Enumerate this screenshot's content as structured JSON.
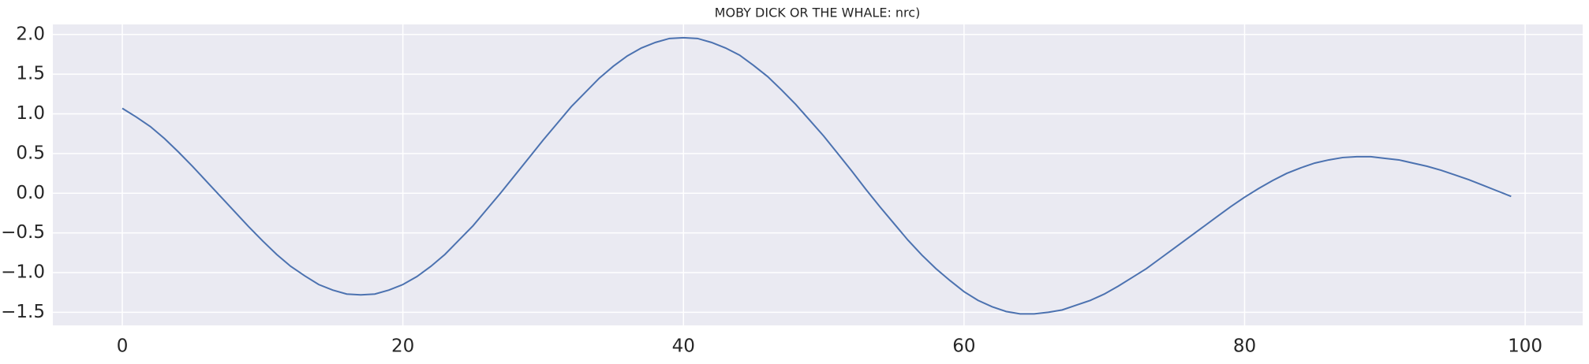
{
  "chart_data": {
    "type": "line",
    "title": "MOBY DICK OR THE WHALE: nrc)",
    "x": [
      0,
      1,
      2,
      3,
      4,
      5,
      6,
      7,
      8,
      9,
      10,
      11,
      12,
      13,
      14,
      15,
      16,
      17,
      18,
      19,
      20,
      21,
      22,
      23,
      24,
      25,
      26,
      27,
      28,
      29,
      30,
      31,
      32,
      33,
      34,
      35,
      36,
      37,
      38,
      39,
      40,
      41,
      42,
      43,
      44,
      45,
      46,
      47,
      48,
      49,
      50,
      51,
      52,
      53,
      54,
      55,
      56,
      57,
      58,
      59,
      60,
      61,
      62,
      63,
      64,
      65,
      66,
      67,
      68,
      69,
      70,
      71,
      72,
      73,
      74,
      75,
      76,
      77,
      78,
      79,
      80,
      81,
      82,
      83,
      84,
      85,
      86,
      87,
      88,
      89,
      90,
      91,
      92,
      93,
      94,
      95,
      96,
      97,
      98,
      99
    ],
    "series": [
      {
        "color": "#4c72b0",
        "values": [
          1.07,
          0.96,
          0.84,
          0.69,
          0.52,
          0.34,
          0.15,
          -0.04,
          -0.23,
          -0.42,
          -0.6,
          -0.77,
          -0.92,
          -1.04,
          -1.15,
          -1.22,
          -1.27,
          -1.28,
          -1.27,
          -1.22,
          -1.15,
          -1.05,
          -0.92,
          -0.77,
          -0.59,
          -0.41,
          -0.2,
          0.01,
          0.23,
          0.45,
          0.67,
          0.88,
          1.09,
          1.27,
          1.45,
          1.6,
          1.73,
          1.83,
          1.9,
          1.95,
          1.96,
          1.95,
          1.9,
          1.83,
          1.74,
          1.61,
          1.47,
          1.3,
          1.12,
          0.92,
          0.72,
          0.5,
          0.28,
          0.05,
          -0.17,
          -0.38,
          -0.59,
          -0.78,
          -0.95,
          -1.1,
          -1.24,
          -1.35,
          -1.43,
          -1.49,
          -1.52,
          -1.52,
          -1.5,
          -1.47,
          -1.41,
          -1.35,
          -1.27,
          -1.17,
          -1.06,
          -0.95,
          -0.82,
          -0.69,
          -0.56,
          -0.43,
          -0.3,
          -0.17,
          -0.05,
          0.06,
          0.16,
          0.25,
          0.32,
          0.38,
          0.42,
          0.45,
          0.46,
          0.46,
          0.44,
          0.42,
          0.38,
          0.34,
          0.29,
          0.23,
          0.17,
          0.1,
          0.03,
          -0.04
        ]
      }
    ],
    "xlim": [
      -4.95,
      104.1
    ],
    "ylim": [
      -1.665,
      2.127
    ],
    "xticks": [
      0,
      20,
      40,
      60,
      80,
      100
    ],
    "yticks": [
      {
        "value": -1.5,
        "label": "−1.5"
      },
      {
        "value": -1,
        "label": "−1.0"
      },
      {
        "value": -0.5,
        "label": "−0.5"
      },
      {
        "value": 0,
        "label": "0.0"
      },
      {
        "value": 0.5,
        "label": "0.5"
      },
      {
        "value": 1,
        "label": "1.0"
      },
      {
        "value": 1.5,
        "label": "1.5"
      },
      {
        "value": 2,
        "label": "2.0"
      }
    ],
    "grid": true
  }
}
